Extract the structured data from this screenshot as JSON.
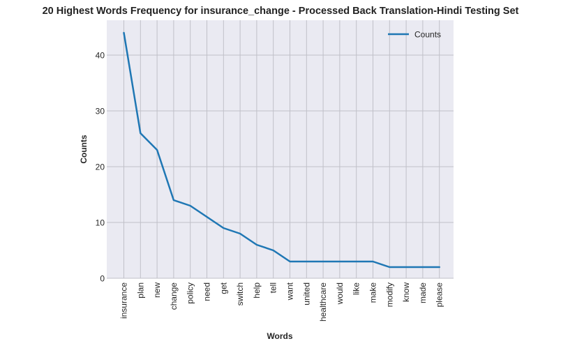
{
  "chart_data": {
    "type": "line",
    "title": "20 Highest Words Frequency for insurance_change - Processed Back Translation-Hindi Testing Set",
    "xlabel": "Words",
    "ylabel": "Counts",
    "categories": [
      "insurance",
      "plan",
      "new",
      "change",
      "policy",
      "need",
      "get",
      "switch",
      "help",
      "tell",
      "want",
      "united",
      "healthcare",
      "would",
      "like",
      "make",
      "modify",
      "know",
      "made",
      "please"
    ],
    "series": [
      {
        "name": "Counts",
        "values": [
          44,
          26,
          23,
          14,
          13,
          11,
          9,
          8,
          6,
          5,
          3,
          3,
          3,
          3,
          3,
          3,
          2,
          2,
          2,
          2
        ]
      }
    ],
    "y_ticks": [
      0,
      10,
      20,
      30,
      40
    ],
    "ylim": [
      0,
      44
    ],
    "grid": true,
    "legend": "top-right",
    "colors": {
      "line": "#1f77b4",
      "plot_background": "#eaeaf2",
      "grid": "#c0c0c8"
    }
  }
}
